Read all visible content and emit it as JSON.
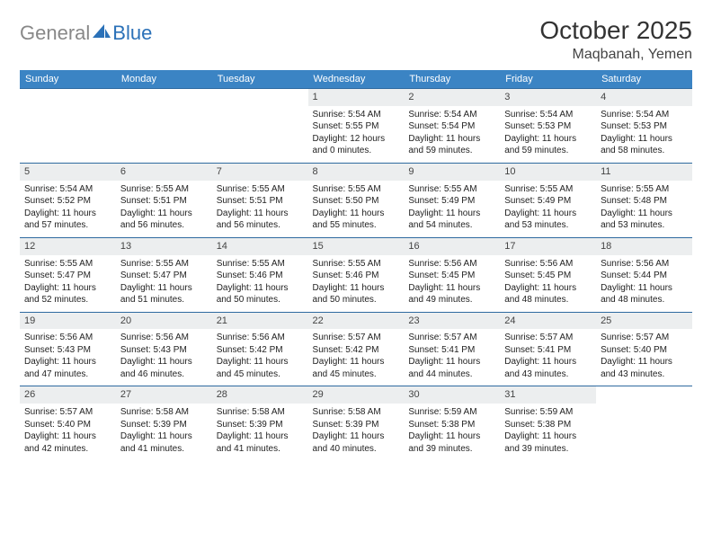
{
  "logo": {
    "part1": "General",
    "part2": "Blue"
  },
  "title": "October 2025",
  "location": "Maqbanah, Yemen",
  "day_headers": [
    "Sunday",
    "Monday",
    "Tuesday",
    "Wednesday",
    "Thursday",
    "Friday",
    "Saturday"
  ],
  "colors": {
    "header_bg": "#3b84c4",
    "header_text": "#ffffff",
    "row_border": "#2f6aa0",
    "daynum_bg": "#eceeef",
    "logo_gray": "#888888",
    "logo_blue": "#2b71b8",
    "body_text": "#222222"
  },
  "weeks": [
    [
      {
        "empty": true
      },
      {
        "empty": true
      },
      {
        "empty": true
      },
      {
        "day": "1",
        "sunrise": "Sunrise: 5:54 AM",
        "sunset": "Sunset: 5:55 PM",
        "daylight": "Daylight: 12 hours and 0 minutes."
      },
      {
        "day": "2",
        "sunrise": "Sunrise: 5:54 AM",
        "sunset": "Sunset: 5:54 PM",
        "daylight": "Daylight: 11 hours and 59 minutes."
      },
      {
        "day": "3",
        "sunrise": "Sunrise: 5:54 AM",
        "sunset": "Sunset: 5:53 PM",
        "daylight": "Daylight: 11 hours and 59 minutes."
      },
      {
        "day": "4",
        "sunrise": "Sunrise: 5:54 AM",
        "sunset": "Sunset: 5:53 PM",
        "daylight": "Daylight: 11 hours and 58 minutes."
      }
    ],
    [
      {
        "day": "5",
        "sunrise": "Sunrise: 5:54 AM",
        "sunset": "Sunset: 5:52 PM",
        "daylight": "Daylight: 11 hours and 57 minutes."
      },
      {
        "day": "6",
        "sunrise": "Sunrise: 5:55 AM",
        "sunset": "Sunset: 5:51 PM",
        "daylight": "Daylight: 11 hours and 56 minutes."
      },
      {
        "day": "7",
        "sunrise": "Sunrise: 5:55 AM",
        "sunset": "Sunset: 5:51 PM",
        "daylight": "Daylight: 11 hours and 56 minutes."
      },
      {
        "day": "8",
        "sunrise": "Sunrise: 5:55 AM",
        "sunset": "Sunset: 5:50 PM",
        "daylight": "Daylight: 11 hours and 55 minutes."
      },
      {
        "day": "9",
        "sunrise": "Sunrise: 5:55 AM",
        "sunset": "Sunset: 5:49 PM",
        "daylight": "Daylight: 11 hours and 54 minutes."
      },
      {
        "day": "10",
        "sunrise": "Sunrise: 5:55 AM",
        "sunset": "Sunset: 5:49 PM",
        "daylight": "Daylight: 11 hours and 53 minutes."
      },
      {
        "day": "11",
        "sunrise": "Sunrise: 5:55 AM",
        "sunset": "Sunset: 5:48 PM",
        "daylight": "Daylight: 11 hours and 53 minutes."
      }
    ],
    [
      {
        "day": "12",
        "sunrise": "Sunrise: 5:55 AM",
        "sunset": "Sunset: 5:47 PM",
        "daylight": "Daylight: 11 hours and 52 minutes."
      },
      {
        "day": "13",
        "sunrise": "Sunrise: 5:55 AM",
        "sunset": "Sunset: 5:47 PM",
        "daylight": "Daylight: 11 hours and 51 minutes."
      },
      {
        "day": "14",
        "sunrise": "Sunrise: 5:55 AM",
        "sunset": "Sunset: 5:46 PM",
        "daylight": "Daylight: 11 hours and 50 minutes."
      },
      {
        "day": "15",
        "sunrise": "Sunrise: 5:55 AM",
        "sunset": "Sunset: 5:46 PM",
        "daylight": "Daylight: 11 hours and 50 minutes."
      },
      {
        "day": "16",
        "sunrise": "Sunrise: 5:56 AM",
        "sunset": "Sunset: 5:45 PM",
        "daylight": "Daylight: 11 hours and 49 minutes."
      },
      {
        "day": "17",
        "sunrise": "Sunrise: 5:56 AM",
        "sunset": "Sunset: 5:45 PM",
        "daylight": "Daylight: 11 hours and 48 minutes."
      },
      {
        "day": "18",
        "sunrise": "Sunrise: 5:56 AM",
        "sunset": "Sunset: 5:44 PM",
        "daylight": "Daylight: 11 hours and 48 minutes."
      }
    ],
    [
      {
        "day": "19",
        "sunrise": "Sunrise: 5:56 AM",
        "sunset": "Sunset: 5:43 PM",
        "daylight": "Daylight: 11 hours and 47 minutes."
      },
      {
        "day": "20",
        "sunrise": "Sunrise: 5:56 AM",
        "sunset": "Sunset: 5:43 PM",
        "daylight": "Daylight: 11 hours and 46 minutes."
      },
      {
        "day": "21",
        "sunrise": "Sunrise: 5:56 AM",
        "sunset": "Sunset: 5:42 PM",
        "daylight": "Daylight: 11 hours and 45 minutes."
      },
      {
        "day": "22",
        "sunrise": "Sunrise: 5:57 AM",
        "sunset": "Sunset: 5:42 PM",
        "daylight": "Daylight: 11 hours and 45 minutes."
      },
      {
        "day": "23",
        "sunrise": "Sunrise: 5:57 AM",
        "sunset": "Sunset: 5:41 PM",
        "daylight": "Daylight: 11 hours and 44 minutes."
      },
      {
        "day": "24",
        "sunrise": "Sunrise: 5:57 AM",
        "sunset": "Sunset: 5:41 PM",
        "daylight": "Daylight: 11 hours and 43 minutes."
      },
      {
        "day": "25",
        "sunrise": "Sunrise: 5:57 AM",
        "sunset": "Sunset: 5:40 PM",
        "daylight": "Daylight: 11 hours and 43 minutes."
      }
    ],
    [
      {
        "day": "26",
        "sunrise": "Sunrise: 5:57 AM",
        "sunset": "Sunset: 5:40 PM",
        "daylight": "Daylight: 11 hours and 42 minutes."
      },
      {
        "day": "27",
        "sunrise": "Sunrise: 5:58 AM",
        "sunset": "Sunset: 5:39 PM",
        "daylight": "Daylight: 11 hours and 41 minutes."
      },
      {
        "day": "28",
        "sunrise": "Sunrise: 5:58 AM",
        "sunset": "Sunset: 5:39 PM",
        "daylight": "Daylight: 11 hours and 41 minutes."
      },
      {
        "day": "29",
        "sunrise": "Sunrise: 5:58 AM",
        "sunset": "Sunset: 5:39 PM",
        "daylight": "Daylight: 11 hours and 40 minutes."
      },
      {
        "day": "30",
        "sunrise": "Sunrise: 5:59 AM",
        "sunset": "Sunset: 5:38 PM",
        "daylight": "Daylight: 11 hours and 39 minutes."
      },
      {
        "day": "31",
        "sunrise": "Sunrise: 5:59 AM",
        "sunset": "Sunset: 5:38 PM",
        "daylight": "Daylight: 11 hours and 39 minutes."
      },
      {
        "empty": true
      }
    ]
  ]
}
